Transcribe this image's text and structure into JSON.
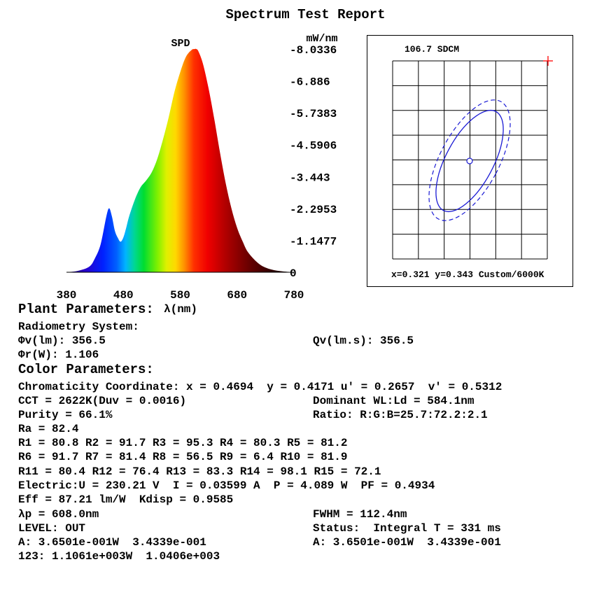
{
  "report_title": "Spectrum Test Report",
  "chart_data": [
    {
      "type": "area",
      "title": "SPD",
      "ylabel": "mW/nm",
      "xlabel": "λ(nm)",
      "xlim": [
        380,
        780
      ],
      "ylim": [
        0,
        8.0336
      ],
      "x_ticks": [
        "380",
        "480",
        "580",
        "680",
        "780"
      ],
      "y_ticks": [
        "-8.0336",
        "-6.886",
        "-5.7383",
        "-4.5906",
        "-3.443",
        "-2.2953",
        "-1.1477",
        "0"
      ],
      "y_tick_values": [
        8.0336,
        6.886,
        5.7383,
        4.5906,
        3.443,
        2.2953,
        1.1477,
        0
      ],
      "fill": "visible-spectrum gradient (blue to red to black)",
      "x": [
        380,
        400,
        420,
        430,
        440,
        450,
        455,
        460,
        465,
        470,
        475,
        480,
        485,
        490,
        500,
        510,
        520,
        530,
        540,
        550,
        560,
        570,
        580,
        590,
        600,
        605,
        608,
        612,
        620,
        630,
        640,
        650,
        660,
        670,
        680,
        690,
        700,
        720,
        740,
        760,
        780
      ],
      "values": [
        0.0,
        0.05,
        0.2,
        0.5,
        1.0,
        2.0,
        2.3,
        2.0,
        1.5,
        1.25,
        1.1,
        1.25,
        1.6,
        2.0,
        2.6,
        3.05,
        3.3,
        3.6,
        4.1,
        4.8,
        5.6,
        6.5,
        7.2,
        7.75,
        8.0,
        8.03,
        8.0336,
        7.95,
        7.5,
        6.6,
        5.5,
        4.3,
        3.2,
        2.3,
        1.6,
        1.1,
        0.7,
        0.28,
        0.1,
        0.03,
        0.0
      ]
    },
    {
      "type": "scatter",
      "title": "106.7 SDCM",
      "annotation": "x=0.321 y=0.343 Custom/6000K",
      "grid": true,
      "grid_columns": 6,
      "grid_rows": 8,
      "ellipse_solid_color": "#1a1ad4",
      "ellipse_dashed_color": "#1a1ad4",
      "marker_color": "#ff0000"
    }
  ],
  "plant_heading": "Plant Parameters:",
  "radiometry_heading": "Radiometry System:",
  "phi_v": "Φv(lm): 356.5",
  "qv": "Qv(lm.s): 356.5",
  "phi_r": "Φr(W): 1.106",
  "color_heading": "Color Parameters:",
  "chromaticity": "Chromaticity Coordinate: x = 0.4694  y = 0.4171 u' = 0.2657  v' = 0.5312",
  "cct": "CCT = 2622K(Duv = 0.0016)",
  "dominant": "Dominant WL:Ld = 584.1nm",
  "purity": "Purity = 66.1%",
  "ratio": "Ratio: R:G:B=25.7:72.2:2.1",
  "ra": "Ra = 82.4",
  "r_line1": "R1 = 80.8 R2 = 91.7 R3 = 95.3 R4 = 80.3 R5 = 81.2",
  "r_line2": "R6 = 91.7 R7 = 81.4 R8 = 56.5 R9 = 6.4 R10 = 81.9",
  "r_line3": "R11 = 80.4 R12 = 76.4 R13 = 83.3 R14 = 98.1 R15 = 72.1",
  "electric": "Electric:U = 230.21 V  I = 0.03599 A  P = 4.089 W  PF = 0.4934",
  "eff": "Eff = 87.21 lm/W  Kdisp = 0.9585",
  "lambda_p": "λp = 608.0nm",
  "fwhm": "FWHM = 112.4nm",
  "level": "LEVEL: OUT",
  "status": "Status:  Integral T = 331 ms",
  "a_left": "A: 3.6501e-001W  3.4339e-001",
  "a_right": "A: 3.6501e-001W  3.4339e-001",
  "line_123": "123: 1.1061e+003W  1.0406e+003"
}
